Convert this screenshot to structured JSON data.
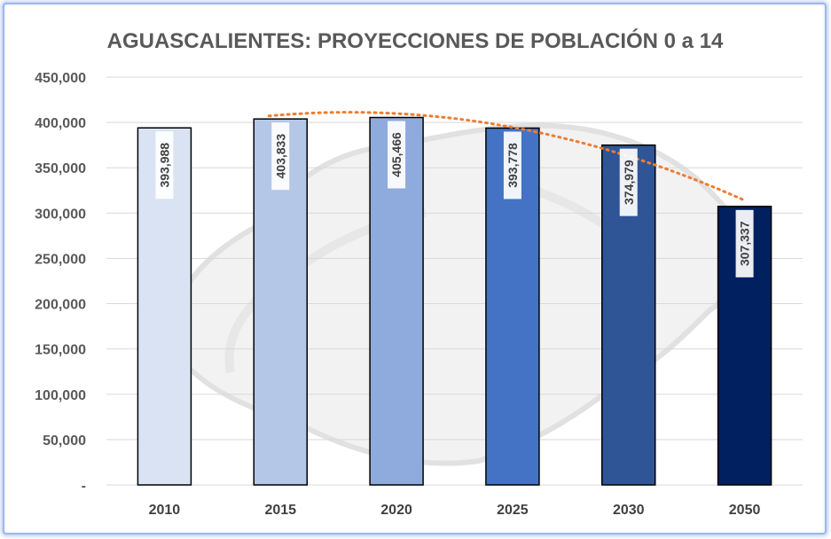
{
  "chart_data": {
    "type": "bar",
    "title": "AGUASCALIENTES: PROYECCIONES DE POBLACIÓN 0 a 14",
    "categories": [
      "2010",
      "2015",
      "2020",
      "2025",
      "2030",
      "2050"
    ],
    "values": [
      393988,
      403833,
      405466,
      393778,
      374979,
      307337
    ],
    "data_labels": [
      "393,988",
      "403,833",
      "405,466",
      "393,778",
      "374,979",
      "307,337"
    ],
    "ylim": [
      0,
      450000
    ],
    "yticks": [
      {
        "value": 0,
        "label": "-"
      },
      {
        "value": 50000,
        "label": "50,000"
      },
      {
        "value": 100000,
        "label": "100,000"
      },
      {
        "value": 150000,
        "label": "150,000"
      },
      {
        "value": 200000,
        "label": "200,000"
      },
      {
        "value": 250000,
        "label": "250,000"
      },
      {
        "value": 300000,
        "label": "300,000"
      },
      {
        "value": 350000,
        "label": "350,000"
      },
      {
        "value": 400000,
        "label": "400,000"
      },
      {
        "value": 450000,
        "label": "450,000"
      }
    ],
    "bar_colors": [
      "#dae3f3",
      "#b4c7e7",
      "#8faadc",
      "#4472c4",
      "#2f5597",
      "#002060"
    ],
    "trendline": {
      "type": "polynomial",
      "color": "#ed7d31",
      "style": "dotted"
    },
    "grid": true,
    "legend": "none",
    "xlabel": "",
    "ylabel": ""
  }
}
